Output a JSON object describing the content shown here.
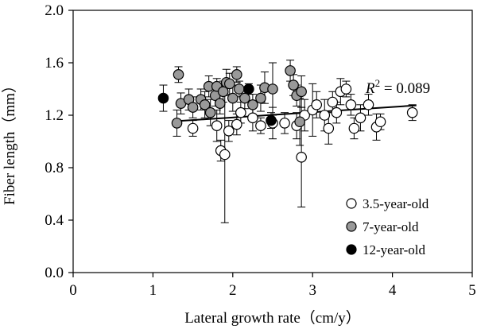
{
  "chart_data": {
    "type": "scatter",
    "xlabel": "Lateral growth rate（cm/y）",
    "ylabel": "Fiber length（mm）",
    "xlim": [
      0,
      5
    ],
    "ylim": [
      0.0,
      2.0
    ],
    "xticks": [
      "0",
      "1",
      "2",
      "3",
      "4",
      "5"
    ],
    "yticks": [
      "0.0",
      "0.4",
      "0.8",
      "1.2",
      "1.6",
      "2.0"
    ],
    "grid": false,
    "legend_position": "bottom-right",
    "annotation": {
      "prefix": "R",
      "sup": "2",
      "suffix": " = 0.089"
    },
    "trendline": {
      "x": [
        1.3,
        4.3
      ],
      "y": [
        1.155,
        1.275
      ],
      "color": "#000000"
    },
    "series": [
      {
        "name": "3.5-year-old",
        "color": "#ffffff",
        "points": [
          {
            "x": 1.5,
            "y": 1.1,
            "err": 0.06
          },
          {
            "x": 1.8,
            "y": 1.12,
            "err": 0.12
          },
          {
            "x": 1.85,
            "y": 0.93,
            "err": 0.08
          },
          {
            "x": 1.9,
            "y": 0.9,
            "err": 0.52
          },
          {
            "x": 1.95,
            "y": 1.08,
            "err": 0.08
          },
          {
            "x": 2.05,
            "y": 1.13,
            "err": 0.08
          },
          {
            "x": 2.1,
            "y": 1.22,
            "err": 0.08
          },
          {
            "x": 2.25,
            "y": 1.18,
            "err": 0.1
          },
          {
            "x": 2.35,
            "y": 1.12,
            "err": 0.06
          },
          {
            "x": 2.5,
            "y": 1.14,
            "err": 0.12
          },
          {
            "x": 2.65,
            "y": 1.14,
            "err": 0.08
          },
          {
            "x": 2.8,
            "y": 1.12,
            "err": 0.1
          },
          {
            "x": 2.86,
            "y": 0.88,
            "err": 0.38
          },
          {
            "x": 2.9,
            "y": 1.2,
            "err": 0.12
          },
          {
            "x": 3.0,
            "y": 1.24,
            "err": 0.2
          },
          {
            "x": 3.05,
            "y": 1.28,
            "err": 0.1
          },
          {
            "x": 3.15,
            "y": 1.2,
            "err": 0.12
          },
          {
            "x": 3.2,
            "y": 1.1,
            "err": 0.12
          },
          {
            "x": 3.25,
            "y": 1.3,
            "err": 0.08
          },
          {
            "x": 3.3,
            "y": 1.22,
            "err": 0.08
          },
          {
            "x": 3.35,
            "y": 1.38,
            "err": 0.1
          },
          {
            "x": 3.42,
            "y": 1.4,
            "err": 0.06
          },
          {
            "x": 3.48,
            "y": 1.28,
            "err": 0.08
          },
          {
            "x": 3.52,
            "y": 1.1,
            "err": 0.08
          },
          {
            "x": 3.6,
            "y": 1.18,
            "err": 0.1
          },
          {
            "x": 3.7,
            "y": 1.28,
            "err": 0.08
          },
          {
            "x": 3.8,
            "y": 1.11,
            "err": 0.1
          },
          {
            "x": 3.85,
            "y": 1.15,
            "err": 0.06
          },
          {
            "x": 4.25,
            "y": 1.22,
            "err": 0.06
          }
        ]
      },
      {
        "name": "7-year-old",
        "color": "#999999",
        "points": [
          {
            "x": 1.3,
            "y": 1.14,
            "err": 0.1
          },
          {
            "x": 1.32,
            "y": 1.51,
            "err": 0.06
          },
          {
            "x": 1.35,
            "y": 1.29,
            "err": 0.08
          },
          {
            "x": 1.45,
            "y": 1.32,
            "err": 0.08
          },
          {
            "x": 1.5,
            "y": 1.26,
            "err": 0.08
          },
          {
            "x": 1.6,
            "y": 1.32,
            "err": 0.08
          },
          {
            "x": 1.65,
            "y": 1.28,
            "err": 0.1
          },
          {
            "x": 1.7,
            "y": 1.42,
            "err": 0.08
          },
          {
            "x": 1.72,
            "y": 1.22,
            "err": 0.1
          },
          {
            "x": 1.78,
            "y": 1.35,
            "err": 0.08
          },
          {
            "x": 1.8,
            "y": 1.42,
            "err": 0.06
          },
          {
            "x": 1.84,
            "y": 1.29,
            "err": 0.08
          },
          {
            "x": 1.88,
            "y": 1.38,
            "err": 0.08
          },
          {
            "x": 1.92,
            "y": 1.45,
            "err": 0.1
          },
          {
            "x": 1.96,
            "y": 1.44,
            "err": 0.08
          },
          {
            "x": 2.0,
            "y": 1.33,
            "err": 0.1
          },
          {
            "x": 2.05,
            "y": 1.51,
            "err": 0.06
          },
          {
            "x": 2.08,
            "y": 1.4,
            "err": 0.06
          },
          {
            "x": 2.15,
            "y": 1.33,
            "err": 0.08
          },
          {
            "x": 2.25,
            "y": 1.28,
            "err": 0.08
          },
          {
            "x": 2.35,
            "y": 1.33,
            "err": 0.1
          },
          {
            "x": 2.4,
            "y": 1.41,
            "err": 0.12
          },
          {
            "x": 2.5,
            "y": 1.4,
            "err": 0.2
          },
          {
            "x": 2.72,
            "y": 1.54,
            "err": 0.08
          },
          {
            "x": 2.76,
            "y": 1.43,
            "err": 0.08
          },
          {
            "x": 2.8,
            "y": 1.35,
            "err": 0.08
          },
          {
            "x": 2.84,
            "y": 1.15,
            "err": 0.18
          },
          {
            "x": 2.86,
            "y": 1.38,
            "err": 0.12
          }
        ]
      },
      {
        "name": "12-year-old",
        "color": "#000000",
        "points": [
          {
            "x": 1.13,
            "y": 1.33,
            "err": 0.1
          },
          {
            "x": 2.2,
            "y": 1.4,
            "err": 0.04
          },
          {
            "x": 2.48,
            "y": 1.16,
            "err": 0.06
          }
        ]
      }
    ]
  }
}
